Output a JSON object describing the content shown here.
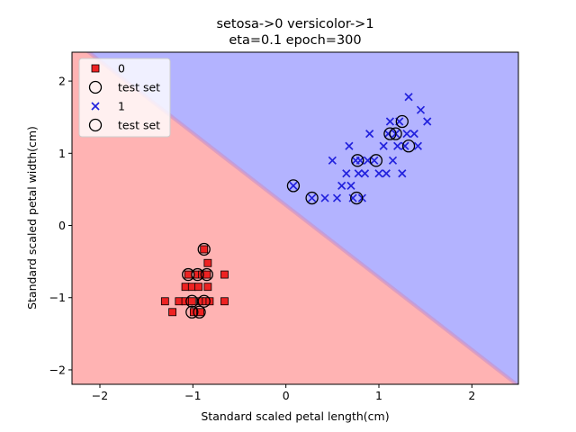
{
  "chart_data": {
    "type": "scatter",
    "title_line1": "setosa->0  versicolor->1",
    "title_line2": "eta=0.1  epoch=300",
    "xlabel": "Standard scaled petal length(cm)",
    "ylabel": "Standard scaled petal width(cm)",
    "xlim": [
      -2.3,
      2.5
    ],
    "ylim": [
      -2.2,
      2.4
    ],
    "xticks": [
      -2,
      -1,
      0,
      1,
      2
    ],
    "yticks": [
      -2,
      -1,
      0,
      1,
      2
    ],
    "grid": false,
    "legend_position": "top-left",
    "decision_boundary": {
      "w0": -0.28,
      "w1": 1.0,
      "w2": 1.0
    },
    "region_colors": {
      "class0": "#ffb3b3",
      "class1": "#b3b3ff"
    },
    "legend": [
      {
        "label": "0",
        "marker": "square",
        "color": "#ee2222"
      },
      {
        "label": "test set",
        "marker": "ring",
        "color": "#000000"
      },
      {
        "label": "1",
        "marker": "x",
        "color": "#2222dd"
      },
      {
        "label": "test set",
        "marker": "ring",
        "color": "#000000"
      }
    ],
    "series": [
      {
        "name": "0",
        "marker": "square",
        "color": "#ee2222",
        "points": [
          [
            -1.3,
            -1.05
          ],
          [
            -1.22,
            -1.2
          ],
          [
            -1.15,
            -1.05
          ],
          [
            -1.08,
            -0.85
          ],
          [
            -1.08,
            -1.05
          ],
          [
            -1.05,
            -0.68
          ],
          [
            -1.01,
            -0.85
          ],
          [
            -1.01,
            -1.05
          ],
          [
            -0.99,
            -1.2
          ],
          [
            -0.95,
            -0.68
          ],
          [
            -0.94,
            -0.85
          ],
          [
            -0.92,
            -1.05
          ],
          [
            -0.92,
            -1.2
          ],
          [
            -0.9,
            -0.68
          ],
          [
            -0.88,
            -0.33
          ],
          [
            -0.86,
            -1.05
          ],
          [
            -0.85,
            -0.68
          ],
          [
            -0.84,
            -0.52
          ],
          [
            -0.84,
            -0.85
          ],
          [
            -0.82,
            -1.05
          ],
          [
            -0.66,
            -0.68
          ],
          [
            -0.66,
            -1.05
          ]
        ]
      },
      {
        "name": "1",
        "marker": "x",
        "color": "#2222dd",
        "points": [
          [
            0.08,
            0.55
          ],
          [
            0.28,
            0.38
          ],
          [
            0.42,
            0.38
          ],
          [
            0.5,
            0.9
          ],
          [
            0.55,
            0.38
          ],
          [
            0.6,
            0.55
          ],
          [
            0.65,
            0.72
          ],
          [
            0.68,
            1.1
          ],
          [
            0.7,
            0.55
          ],
          [
            0.72,
            0.38
          ],
          [
            0.75,
            0.9
          ],
          [
            0.78,
            0.72
          ],
          [
            0.8,
            0.9
          ],
          [
            0.82,
            0.38
          ],
          [
            0.85,
            0.72
          ],
          [
            0.88,
            0.9
          ],
          [
            0.9,
            1.27
          ],
          [
            0.95,
            0.9
          ],
          [
            1.0,
            0.72
          ],
          [
            1.05,
            1.1
          ],
          [
            1.08,
            0.72
          ],
          [
            1.1,
            1.27
          ],
          [
            1.12,
            1.44
          ],
          [
            1.15,
            0.9
          ],
          [
            1.18,
            1.27
          ],
          [
            1.2,
            1.1
          ],
          [
            1.22,
            1.44
          ],
          [
            1.25,
            0.72
          ],
          [
            1.28,
            1.1
          ],
          [
            1.3,
            1.27
          ],
          [
            1.32,
            1.78
          ],
          [
            1.38,
            1.27
          ],
          [
            1.42,
            1.1
          ],
          [
            1.45,
            1.6
          ],
          [
            1.52,
            1.44
          ]
        ]
      },
      {
        "name": "test set",
        "marker": "ring",
        "color": "#000000",
        "points": [
          [
            -1.05,
            -0.68
          ],
          [
            -0.95,
            -0.68
          ],
          [
            -0.85,
            -0.68
          ],
          [
            -0.88,
            -0.33
          ],
          [
            -1.01,
            -1.05
          ],
          [
            -0.88,
            -1.05
          ],
          [
            -1.01,
            -1.2
          ],
          [
            -0.93,
            -1.2
          ],
          [
            0.08,
            0.55
          ],
          [
            0.28,
            0.38
          ],
          [
            0.76,
            0.38
          ],
          [
            0.77,
            0.9
          ],
          [
            0.97,
            0.9
          ],
          [
            1.12,
            1.27
          ],
          [
            1.18,
            1.27
          ],
          [
            1.25,
            1.44
          ],
          [
            1.32,
            1.1
          ]
        ]
      }
    ]
  }
}
